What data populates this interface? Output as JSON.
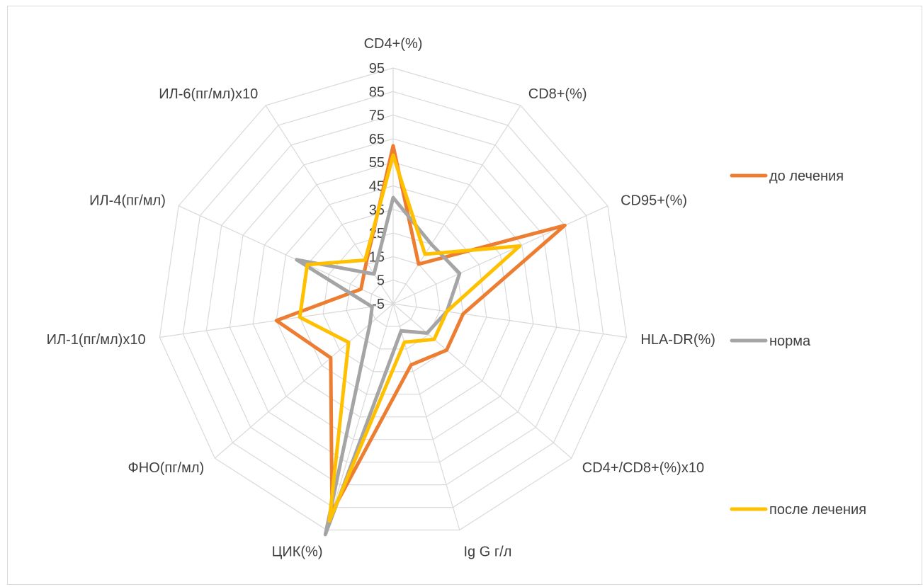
{
  "chart_data": {
    "type": "radar",
    "title": "",
    "axes": [
      "CD4+(%)",
      "CD8+(%)",
      "CD95+(%)",
      "HLA-DR(%)",
      "CD4+/CD8+(%)x10",
      "Ig G г/л",
      "ЦИК(%)",
      "ФНО(пг/мл)",
      "ИЛ-1(пг/мл)x10",
      "ИЛ-4(пг/мл)",
      "ИЛ-6(пг/мл)x10"
    ],
    "r_ticks": [
      -5,
      5,
      15,
      25,
      35,
      45,
      55,
      65,
      75,
      85,
      95
    ],
    "r_range": [
      -5,
      95
    ],
    "grid": true,
    "legend_position": "right",
    "series": [
      {
        "name": "до лечения",
        "color": "#ED7D31",
        "values": [
          62,
          15,
          75,
          25,
          25,
          22,
          87,
          30,
          45,
          10,
          16
        ]
      },
      {
        "name": "норма",
        "color": "#A5A5A5",
        "values": [
          40,
          25,
          26,
          18,
          14,
          7,
          97,
          8,
          4,
          40,
          10
        ]
      },
      {
        "name": "после лечения",
        "color": "#FFC000",
        "values": [
          58,
          20,
          54,
          18,
          18,
          12,
          91,
          20,
          35,
          35,
          17
        ]
      }
    ]
  }
}
